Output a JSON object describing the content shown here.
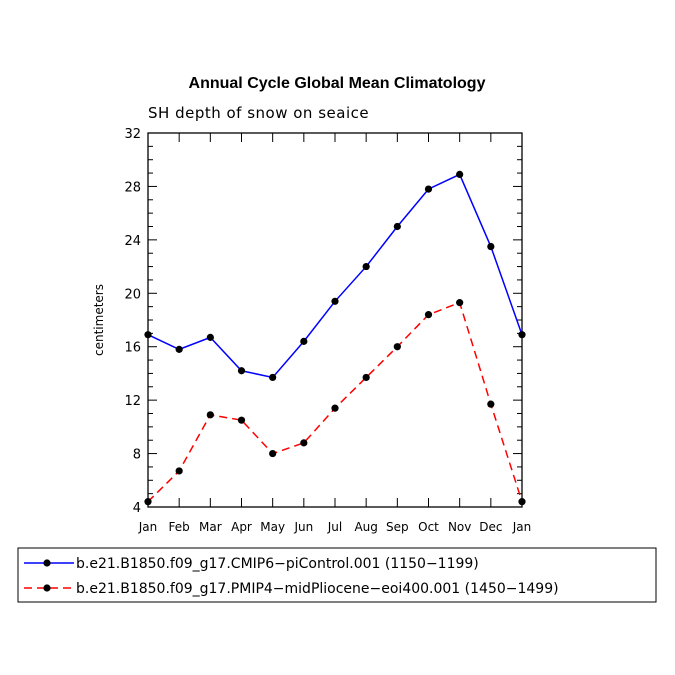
{
  "chart_data": {
    "type": "line",
    "title": "Annual Cycle Global Mean Climatology",
    "subtitle": "SH depth of snow on seaice",
    "xlabel": "",
    "ylabel": "centimeters",
    "categories": [
      "Jan",
      "Feb",
      "Mar",
      "Apr",
      "May",
      "Jun",
      "Jul",
      "Aug",
      "Sep",
      "Oct",
      "Nov",
      "Dec",
      "Jan"
    ],
    "ylim": [
      4,
      32
    ],
    "yticks": [
      4,
      8,
      12,
      16,
      20,
      24,
      28,
      32
    ],
    "grid": false,
    "legend_position": "bottom",
    "series": [
      {
        "name": "b.e21.B1850.f09_g17.CMIP6−piControl.001 (1150−1199)",
        "color": "#0000ff",
        "style": "solid",
        "values": [
          16.9,
          15.8,
          16.7,
          14.2,
          13.7,
          16.4,
          19.4,
          22.0,
          25.0,
          27.8,
          28.9,
          23.5,
          16.9
        ]
      },
      {
        "name": "b.e21.B1850.f09_g17.PMIP4−midPliocene−eoi400.001 (1450−1499)",
        "color": "#ff0000",
        "style": "dashed",
        "values": [
          4.4,
          6.7,
          10.9,
          10.5,
          8.0,
          8.8,
          11.4,
          13.7,
          16.0,
          18.4,
          19.3,
          11.7,
          4.4
        ]
      }
    ]
  }
}
